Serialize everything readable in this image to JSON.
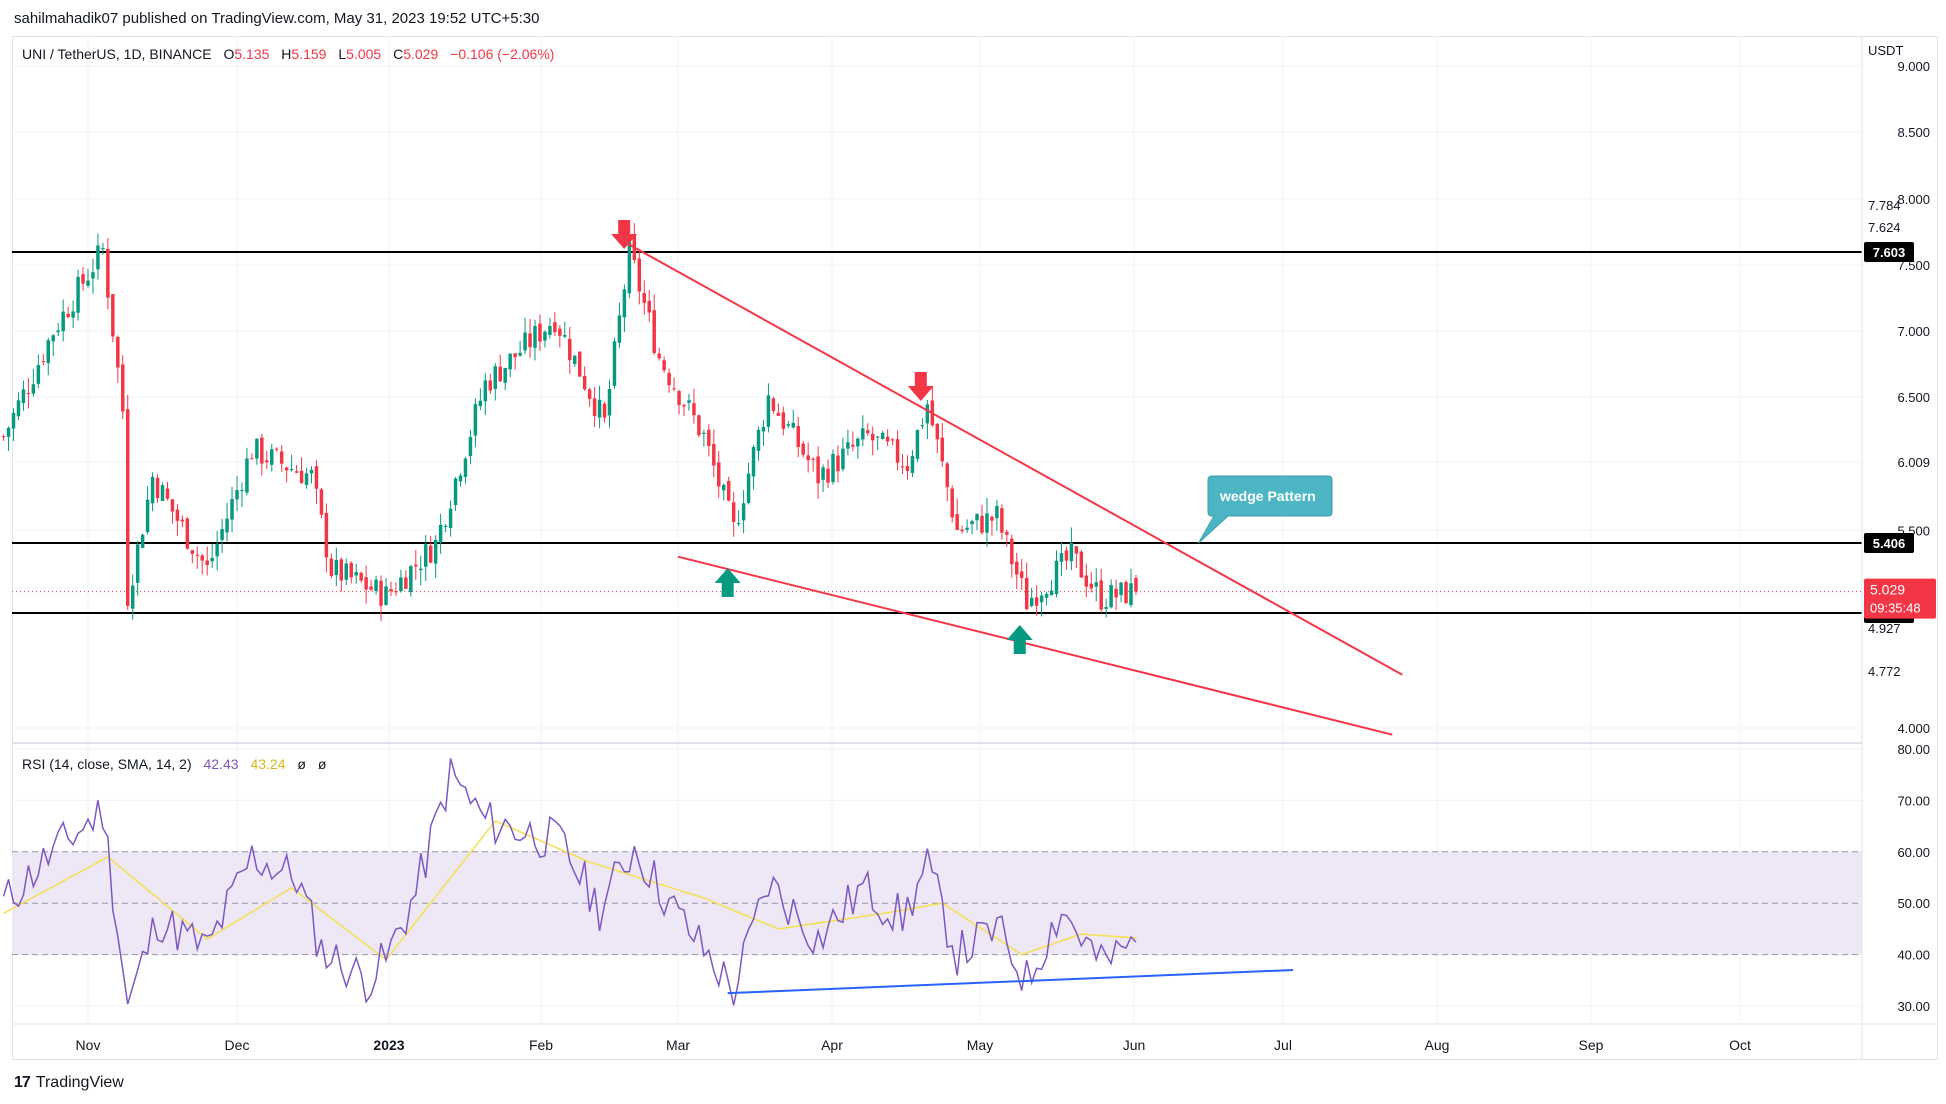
{
  "publisher": "sahilmahadik07 published on TradingView.com, May 31, 2023 19:52 UTC+5:30",
  "footer": {
    "brand": "TradingView",
    "logo_icon": "tradingview-logo-icon"
  },
  "header": {
    "symbol": "UNI / TetherUS, 1D, BINANCE",
    "o_label": "O",
    "o_value": "5.135",
    "h_label": "H",
    "h_value": "5.159",
    "l_label": "L",
    "l_value": "5.005",
    "c_label": "C",
    "c_value": "5.029",
    "change": "−0.106 (−2.06%)"
  },
  "colors": {
    "up": "#089981",
    "down": "#f23645",
    "rsi": "#7e57c2",
    "rsi_ma": "#f5e050",
    "wedge": "#f23645",
    "divergence": "#2962ff",
    "callout": "#4db6c4",
    "rsi_band": "#ede7f6"
  },
  "chart_data": [
    {
      "type": "candlestick",
      "title": "UNI / TetherUS, 1D, BINANCE",
      "unit": "USDT",
      "x_ticks": [
        "Nov",
        "Dec",
        "2023",
        "Feb",
        "Mar",
        "Apr",
        "May",
        "Jun",
        "Jul",
        "Aug",
        "Sep",
        "Oct"
      ],
      "y_ticks": [
        "9.000",
        "8.500",
        "8.000",
        "7.500",
        "7.000",
        "6.500",
        "6.009",
        "5.500",
        "4.000"
      ],
      "extra_price_labels": [
        "7.784",
        "7.624",
        "4.927",
        "4.772"
      ],
      "last_price": {
        "value": "5.029",
        "countdown": "09:35:48"
      },
      "horizontal_levels": [
        {
          "label": "7.603",
          "value": 7.603
        },
        {
          "label": "5.406",
          "value": 5.406
        },
        {
          "label": "4.863",
          "value": 4.863
        }
      ],
      "ohlc_waypoints": [
        {
          "date": "2022-10-15",
          "close": 6.2
        },
        {
          "date": "2022-10-25",
          "close": 7.0
        },
        {
          "date": "2022-11-04",
          "close": 7.62
        },
        {
          "date": "2022-11-08",
          "close": 6.4
        },
        {
          "date": "2022-11-09",
          "close": 5.0
        },
        {
          "date": "2022-11-14",
          "close": 5.9
        },
        {
          "date": "2022-11-25",
          "close": 5.2
        },
        {
          "date": "2022-12-04",
          "close": 6.1
        },
        {
          "date": "2022-12-16",
          "close": 5.9
        },
        {
          "date": "2022-12-20",
          "close": 5.2
        },
        {
          "date": "2022-12-31",
          "close": 5.0
        },
        {
          "date": "2023-01-10",
          "close": 5.4
        },
        {
          "date": "2023-01-20",
          "close": 6.6
        },
        {
          "date": "2023-02-03",
          "close": 7.1
        },
        {
          "date": "2023-02-13",
          "close": 6.3
        },
        {
          "date": "2023-02-18",
          "close": 7.6
        },
        {
          "date": "2023-02-24",
          "close": 6.8
        },
        {
          "date": "2023-03-05",
          "close": 6.2
        },
        {
          "date": "2023-03-11",
          "close": 5.5
        },
        {
          "date": "2023-03-18",
          "close": 6.5
        },
        {
          "date": "2023-03-28",
          "close": 5.9
        },
        {
          "date": "2023-04-07",
          "close": 6.2
        },
        {
          "date": "2023-04-15",
          "close": 6.0
        },
        {
          "date": "2023-04-19",
          "close": 6.45
        },
        {
          "date": "2023-04-25",
          "close": 5.5
        },
        {
          "date": "2023-05-03",
          "close": 5.6
        },
        {
          "date": "2023-05-09",
          "close": 4.95
        },
        {
          "date": "2023-05-18",
          "close": 5.3
        },
        {
          "date": "2023-05-24",
          "close": 4.98
        },
        {
          "date": "2023-05-31",
          "close": 5.03
        }
      ],
      "wedge_pattern": {
        "label": "wedge Pattern",
        "upper_line": [
          {
            "date": "2023-02-17",
            "price": 7.7
          },
          {
            "date": "2023-07-25",
            "price": 4.4
          }
        ],
        "lower_line": [
          {
            "date": "2023-03-01",
            "price": 5.3
          },
          {
            "date": "2023-07-23",
            "price": 3.95
          }
        ]
      },
      "markers": [
        {
          "kind": "down-arrow",
          "date": "2023-02-18"
        },
        {
          "kind": "down-arrow",
          "date": "2023-04-19"
        },
        {
          "kind": "up-arrow",
          "date": "2023-03-11"
        },
        {
          "kind": "up-arrow",
          "date": "2023-05-09"
        }
      ]
    },
    {
      "type": "line",
      "title": "RSI (14, close, SMA, 14, 2)",
      "legend": {
        "rsi_value": "42.43",
        "ma_value": "43.24",
        "extra1": "ø",
        "extra2": "ø"
      },
      "ylim": [
        30,
        80
      ],
      "y_ticks": [
        "80.00",
        "70.00",
        "60.00",
        "50.00",
        "40.00",
        "30.00"
      ],
      "band": [
        40,
        60
      ],
      "midline": 50,
      "rsi_waypoints": [
        {
          "date": "2022-10-15",
          "value": 50
        },
        {
          "date": "2022-10-25",
          "value": 60
        },
        {
          "date": "2022-11-04",
          "value": 68
        },
        {
          "date": "2022-11-09",
          "value": 30
        },
        {
          "date": "2022-11-15",
          "value": 47
        },
        {
          "date": "2022-11-25",
          "value": 41
        },
        {
          "date": "2022-12-04",
          "value": 59
        },
        {
          "date": "2022-12-13",
          "value": 55
        },
        {
          "date": "2022-12-18",
          "value": 41
        },
        {
          "date": "2022-12-27",
          "value": 35
        },
        {
          "date": "2022-12-31",
          "value": 39
        },
        {
          "date": "2023-01-06",
          "value": 52
        },
        {
          "date": "2023-01-13",
          "value": 75
        },
        {
          "date": "2023-01-20",
          "value": 66
        },
        {
          "date": "2023-02-04",
          "value": 62
        },
        {
          "date": "2023-02-12",
          "value": 49
        },
        {
          "date": "2023-02-19",
          "value": 61
        },
        {
          "date": "2023-02-26",
          "value": 50
        },
        {
          "date": "2023-03-11",
          "value": 33
        },
        {
          "date": "2023-03-18",
          "value": 54
        },
        {
          "date": "2023-03-28",
          "value": 43
        },
        {
          "date": "2023-04-06",
          "value": 53
        },
        {
          "date": "2023-04-14",
          "value": 47
        },
        {
          "date": "2023-04-19",
          "value": 57
        },
        {
          "date": "2023-04-25",
          "value": 40
        },
        {
          "date": "2023-05-03",
          "value": 45
        },
        {
          "date": "2023-05-09",
          "value": 35
        },
        {
          "date": "2023-05-16",
          "value": 49
        },
        {
          "date": "2023-05-24",
          "value": 38
        },
        {
          "date": "2023-05-31",
          "value": 42.43
        }
      ],
      "ma_waypoints": [
        {
          "date": "2022-10-15",
          "value": 48
        },
        {
          "date": "2022-11-05",
          "value": 59
        },
        {
          "date": "2022-11-25",
          "value": 43
        },
        {
          "date": "2022-12-12",
          "value": 53
        },
        {
          "date": "2022-12-31",
          "value": 39
        },
        {
          "date": "2023-01-22",
          "value": 66
        },
        {
          "date": "2023-02-10",
          "value": 58
        },
        {
          "date": "2023-03-05",
          "value": 51
        },
        {
          "date": "2023-03-20",
          "value": 45
        },
        {
          "date": "2023-04-10",
          "value": 48
        },
        {
          "date": "2023-04-22",
          "value": 50
        },
        {
          "date": "2023-05-08",
          "value": 40
        },
        {
          "date": "2023-05-20",
          "value": 44
        },
        {
          "date": "2023-05-31",
          "value": 43.24
        }
      ],
      "divergence_line": [
        {
          "date": "2023-03-11",
          "value": 32.5
        },
        {
          "date": "2023-07-03",
          "value": 37
        }
      ]
    }
  ]
}
